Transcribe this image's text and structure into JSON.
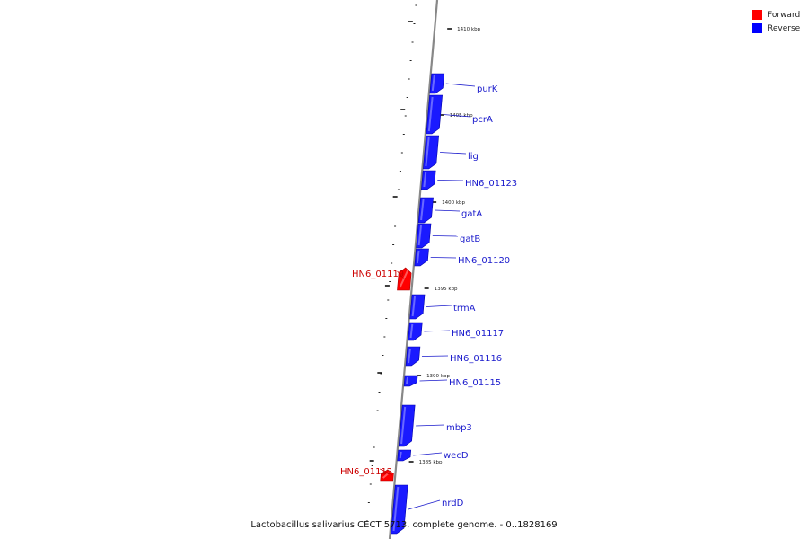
{
  "legend": {
    "items": [
      {
        "label": "Forward",
        "color": "#ff0000"
      },
      {
        "label": "Reverse",
        "color": "#0000ff"
      }
    ]
  },
  "caption": "Lactobacillus salivarius CECT 5713, complete genome. - 0..1828169",
  "colors": {
    "forward": "#ff0000",
    "reverse": "#1a1aff",
    "backbone": "#888888",
    "label_forward": "#cc0000",
    "label_reverse": "#1a1acc"
  },
  "ticks": [
    {
      "label": "1410 kbp"
    },
    {
      "label": "1405 kbp"
    },
    {
      "label": "1400 kbp"
    },
    {
      "label": "1395 kbp"
    },
    {
      "label": "1390 kbp"
    },
    {
      "label": "1385 kbp"
    }
  ],
  "genes": [
    {
      "name": "purK",
      "strand": "reverse"
    },
    {
      "name": "pcrA",
      "strand": "reverse"
    },
    {
      "name": "lig",
      "strand": "reverse"
    },
    {
      "name": "HN6_01123",
      "strand": "reverse"
    },
    {
      "name": "gatA",
      "strand": "reverse"
    },
    {
      "name": "gatB",
      "strand": "reverse"
    },
    {
      "name": "HN6_01120",
      "strand": "reverse"
    },
    {
      "name": "HN6_01119",
      "strand": "forward"
    },
    {
      "name": "trmA",
      "strand": "reverse"
    },
    {
      "name": "HN6_01117",
      "strand": "reverse"
    },
    {
      "name": "HN6_01116",
      "strand": "reverse"
    },
    {
      "name": "HN6_01115",
      "strand": "reverse"
    },
    {
      "name": "mbp3",
      "strand": "reverse"
    },
    {
      "name": "wecD",
      "strand": "reverse"
    },
    {
      "name": "HN6_01112",
      "strand": "forward"
    },
    {
      "name": "nrdD",
      "strand": "reverse"
    }
  ]
}
